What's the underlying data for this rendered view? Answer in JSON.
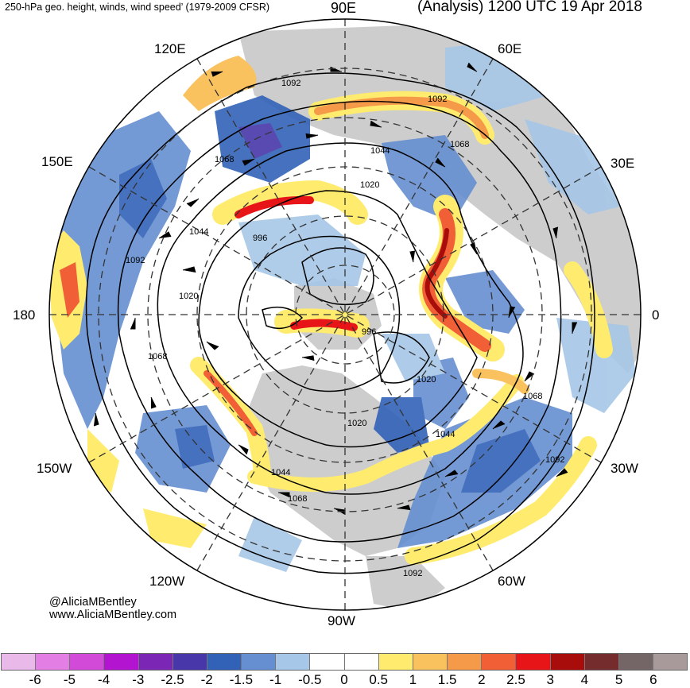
{
  "header": {
    "title_left": "250-hPa geo. height, winds, wind speed’ (1979-2009 CFSR)",
    "title_right": "(Analysis) 1200 UTC 19 Apr 2018"
  },
  "longitude_labels": {
    "n90e": "90E",
    "n60e": "60E",
    "n30e": "30E",
    "e0": "0",
    "s30w": "30W",
    "s60w": "60W",
    "s90w": "90W",
    "s120w": "120W",
    "w150w": "150W",
    "w180": "180",
    "w150e": "150E",
    "n120e": "120E"
  },
  "contour_labels": [
    "1092",
    "1092",
    "1068",
    "1044",
    "1020",
    "1068",
    "1044",
    "996",
    "1092",
    "1020",
    "996",
    "1068",
    "1020",
    "1068",
    "1020",
    "1044",
    "1092",
    "1044",
    "1068",
    "1092"
  ],
  "credits": {
    "handle": "@AliciaMBentley",
    "site": "www.AliciaMBentley.com"
  },
  "colorbar": {
    "colors": [
      "#e9b9e9",
      "#e27ee4",
      "#d24ad8",
      "#b214cf",
      "#7c26b5",
      "#4737a8",
      "#3262b8",
      "#658fd1",
      "#a6c7e7",
      "#ffffff",
      "#ffffff",
      "#ffeb6e",
      "#f9c25f",
      "#f59a48",
      "#f15f36",
      "#e71418",
      "#a80d0c",
      "#742d2c",
      "#746666",
      "#a89a9a"
    ],
    "tick_labels": [
      "-6",
      "-5",
      "-4",
      "-3",
      "-2.5",
      "-2",
      "-1.5",
      "-1",
      "-0.5",
      "0",
      "0.5",
      "1",
      "1.5",
      "2",
      "2.5",
      "3",
      "4",
      "5",
      "6"
    ]
  },
  "colors": {
    "land": "#c8c8c8",
    "contour": "#000000",
    "positive_jet": "#e71418",
    "negative_anom": "#3262b8"
  }
}
